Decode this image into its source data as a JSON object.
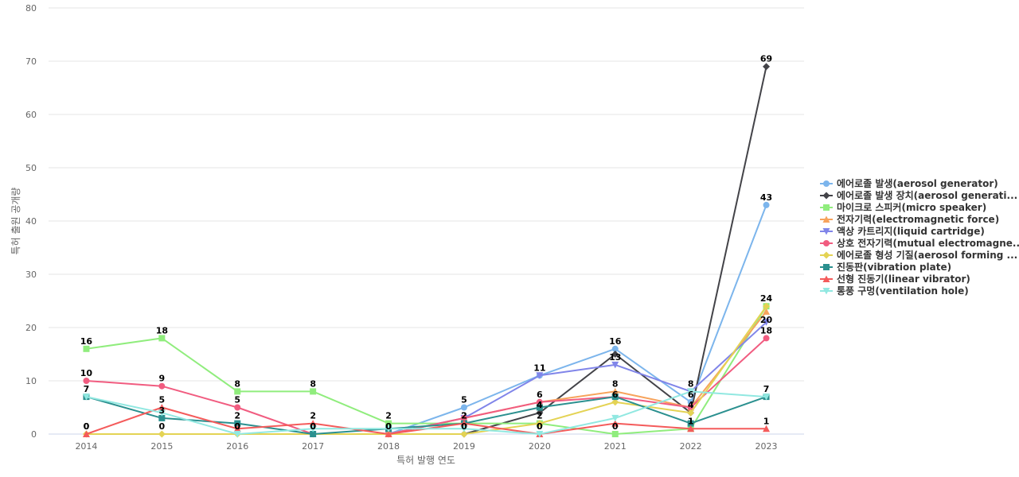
{
  "chart_data": {
    "type": "line",
    "title": "",
    "xlabel": "특허 발행 연도",
    "ylabel": "특허 출원 공개량",
    "ylim": [
      0,
      80
    ],
    "yticks": [
      0,
      10,
      20,
      30,
      40,
      50,
      60,
      70,
      80
    ],
    "grid": true,
    "legend_position": "right",
    "categories": [
      "2014",
      "2015",
      "2016",
      "2017",
      "2018",
      "2019",
      "2020",
      "2021",
      "2022",
      "2023"
    ],
    "series": [
      {
        "name": "에어로졸 발생(aerosol generator)",
        "color": "#7cb5ec",
        "marker": "circle",
        "values": [
          null,
          null,
          null,
          null,
          0,
          5,
          11,
          16,
          6,
          43
        ],
        "labels_shown": [
          false,
          false,
          false,
          false,
          false,
          true,
          false,
          true,
          false,
          true
        ]
      },
      {
        "name": "에어로졸 발생 장치(aerosol generati...",
        "color": "#434348",
        "marker": "diamond",
        "values": [
          null,
          null,
          null,
          null,
          null,
          0,
          4,
          15,
          4,
          69
        ],
        "labels_shown": [
          false,
          false,
          false,
          false,
          false,
          false,
          true,
          false,
          false,
          true
        ]
      },
      {
        "name": "마이크로 스피커(micro speaker)",
        "color": "#90ed7d",
        "marker": "square",
        "values": [
          16,
          18,
          8,
          8,
          2,
          2,
          2,
          0,
          1,
          24
        ],
        "labels_shown": [
          true,
          true,
          true,
          true,
          true,
          false,
          true,
          true,
          false,
          true
        ]
      },
      {
        "name": "전자기력(electromagnetic force)",
        "color": "#f7a35c",
        "marker": "triangle",
        "values": [
          null,
          null,
          null,
          null,
          0,
          3,
          6,
          8,
          5,
          23
        ],
        "labels_shown": [
          false,
          false,
          false,
          false,
          false,
          false,
          false,
          true,
          false,
          false
        ]
      },
      {
        "name": "액상 카트리지(liquid cartridge)",
        "color": "#8085e9",
        "marker": "triangle-down",
        "values": [
          null,
          null,
          null,
          null,
          0,
          3,
          11,
          13,
          8,
          21
        ],
        "labels_shown": [
          false,
          false,
          false,
          false,
          false,
          false,
          true,
          true,
          true,
          false
        ]
      },
      {
        "name": "상호 전자기력(mutual electromagne...",
        "color": "#f15c80",
        "marker": "circle",
        "values": [
          10,
          9,
          5,
          0,
          0,
          3,
          6,
          7,
          5,
          18
        ],
        "labels_shown": [
          true,
          true,
          true,
          false,
          false,
          false,
          true,
          false,
          false,
          true
        ]
      },
      {
        "name": "에어로졸 형성 기질(aerosol forming ...",
        "color": "#e4d354",
        "marker": "diamond",
        "values": [
          0,
          0,
          0,
          0,
          0,
          0,
          2,
          6,
          4,
          24
        ],
        "labels_shown": [
          true,
          true,
          true,
          true,
          true,
          true,
          false,
          false,
          false,
          false
        ]
      },
      {
        "name": "진동판(vibration plate)",
        "color": "#2b908f",
        "marker": "square",
        "values": [
          7,
          3,
          2,
          0,
          1,
          2,
          5,
          7,
          2,
          7
        ],
        "labels_shown": [
          true,
          true,
          true,
          false,
          false,
          false,
          false,
          false,
          false,
          false
        ]
      },
      {
        "name": "선형 진동기(linear vibrator)",
        "color": "#f45b5b",
        "marker": "triangle",
        "values": [
          0,
          5,
          1,
          2,
          0,
          2,
          0,
          2,
          1,
          1
        ],
        "labels_shown": [
          true,
          true,
          false,
          true,
          false,
          true,
          true,
          false,
          true,
          true
        ]
      },
      {
        "name": "통풍 구멍(ventilation hole)",
        "color": "#91e8e1",
        "marker": "triangle-down",
        "values": [
          7,
          4,
          0,
          1,
          1,
          1,
          0,
          3,
          8,
          7
        ],
        "labels_shown": [
          false,
          false,
          false,
          false,
          false,
          false,
          false,
          false,
          false,
          true
        ]
      }
    ],
    "extra_labels": [
      {
        "category": "2016",
        "text": "0",
        "anchor_value": 0
      },
      {
        "category": "2017",
        "text": "0",
        "anchor_value": 0
      },
      {
        "category": "2018",
        "text": "0",
        "anchor_value": 0
      },
      {
        "category": "2019",
        "text": "2",
        "anchor_value": 2
      },
      {
        "category": "2020",
        "text": "4",
        "anchor_value": 4
      },
      {
        "category": "2020",
        "text": "0",
        "anchor_value": 0
      },
      {
        "category": "2021",
        "text": "6",
        "anchor_value": 6
      },
      {
        "category": "2022",
        "text": "6",
        "anchor_value": 6
      },
      {
        "category": "2022",
        "text": "4",
        "anchor_value": 4
      },
      {
        "category": "2023",
        "text": "20",
        "anchor_value": 20
      }
    ]
  }
}
